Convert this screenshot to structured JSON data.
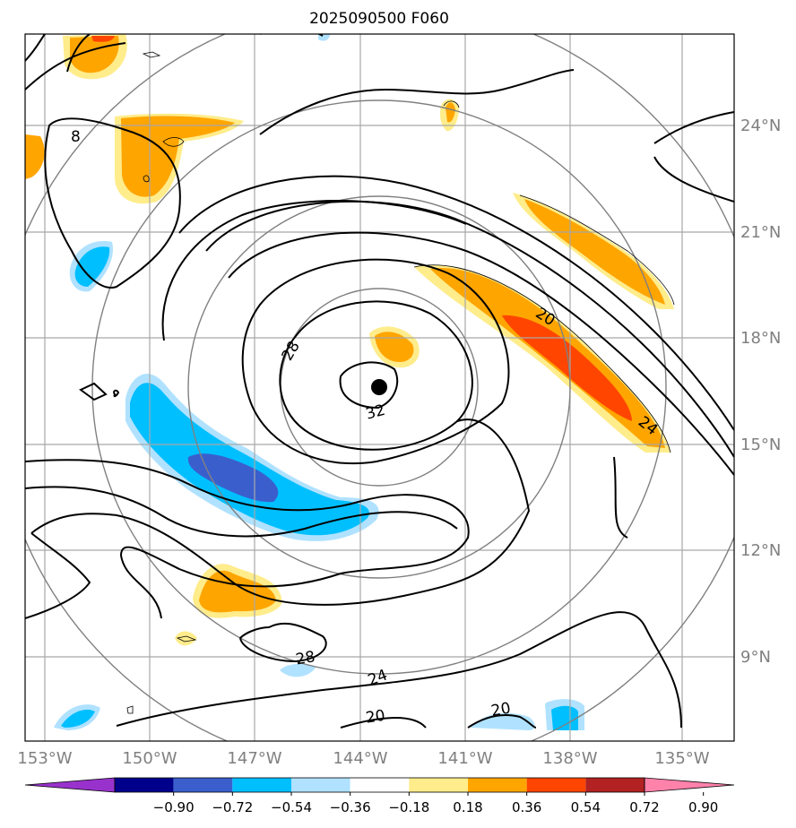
{
  "title": "2025090500 F060",
  "lon_labels": [
    "153°W",
    "150°W",
    "147°W",
    "144°W",
    "141°W",
    "138°W",
    "135°W"
  ],
  "lat_labels": [
    "24°N",
    "21°N",
    "18°N",
    "15°N",
    "12°N",
    "9°N"
  ],
  "contour_labels": [
    "8",
    "28",
    "32",
    "20",
    "24",
    "28",
    "24",
    "20",
    "20"
  ],
  "colorbar": {
    "ticks": [
      "−0.90",
      "−0.72",
      "−0.54",
      "−0.36",
      "−0.18",
      "0.18",
      "0.36",
      "0.54",
      "0.72",
      "0.90"
    ],
    "colors": [
      "#9932cc",
      "#00008b",
      "#3a5fcd",
      "#00bfff",
      "#b0e2ff",
      "#ffffff",
      "#ffec8b",
      "#ffa500",
      "#ff4500",
      "#b22222",
      "#ff82ab"
    ]
  },
  "storm_center": {
    "lon": -143.9,
    "lat": 16.6
  }
}
